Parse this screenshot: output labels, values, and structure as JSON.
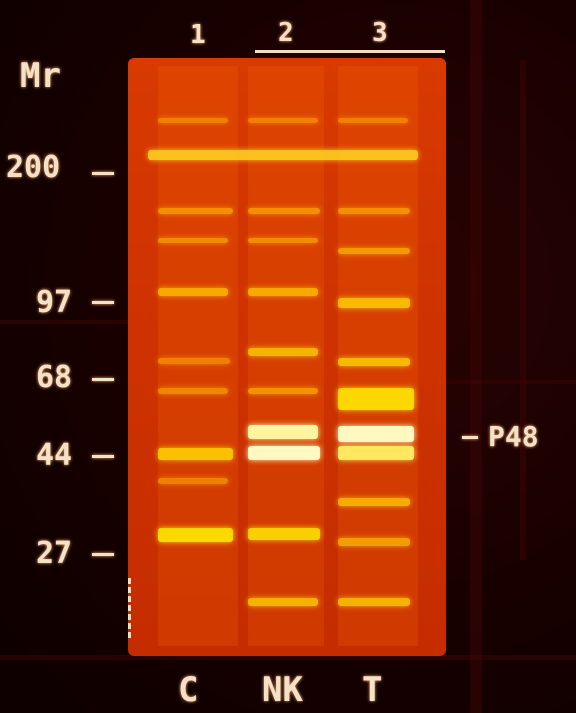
{
  "lane_numbers": [
    "1",
    "2",
    "3"
  ],
  "mr_label": "Mr",
  "markers": [
    "200",
    "97",
    "68",
    "44",
    "27"
  ],
  "band_label": "P48",
  "lane_labels": [
    "C",
    "NK",
    "T"
  ],
  "colors": {
    "background": "#1a0000",
    "gel": "#d03500",
    "band": "#ffd400",
    "text": "#f4e2c8"
  }
}
